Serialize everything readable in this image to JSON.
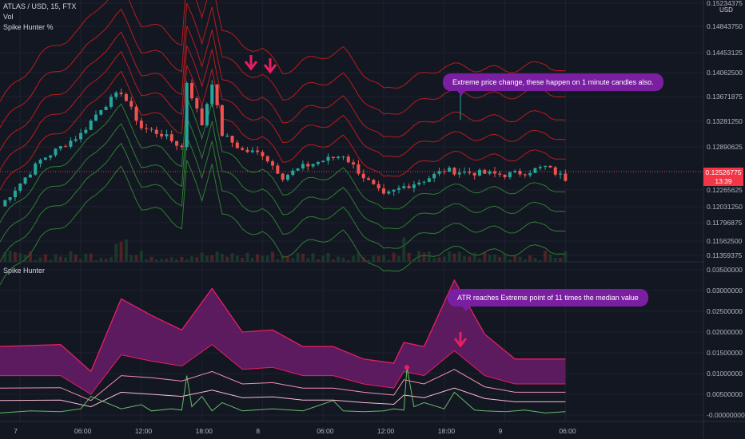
{
  "legend": {
    "symbol_line": "ATLAS / USD, 15, FTX",
    "vol_label": "Vol",
    "main_indicator": "Spike Hunter %",
    "lower_indicator": "Spike Hunter"
  },
  "annotations": {
    "upper": "Extreme price change,  these happen on 1 minute candles also.",
    "lower": "ATR reaches Extreme point of 11 times the median value"
  },
  "price_axis": {
    "currency": "USD",
    "ticks": [
      "0.15234375",
      "0.14843750",
      "0.14453125",
      "0.14062500",
      "0.13671875",
      "0.13281250",
      "0.12890625",
      "0.12265625",
      "0.12031250",
      "0.11796875",
      "0.11562500",
      "0.11359375"
    ],
    "last_price": "0.12526775",
    "countdown": "13:39"
  },
  "indicator_axis": {
    "ticks": [
      "0.03500000",
      "0.03000000",
      "0.02500000",
      "0.02000000",
      "0.01500000",
      "0.01000000",
      "0.00500000",
      "-0.00000000"
    ]
  },
  "time_axis": {
    "ticks": [
      "7",
      "06:00",
      "12:00",
      "18:00",
      "8",
      "06:00",
      "12:00",
      "18:00",
      "9",
      "06:00"
    ]
  },
  "colors": {
    "background": "#131722",
    "candle_up": "#26a69a",
    "candle_down": "#ef5350",
    "band_red": "#b71c1c",
    "band_green": "#2e7d32",
    "atr_fill": "#6a1b6a",
    "atr_line": "#e91e63",
    "spike_green": "#66bb6a",
    "callout": "#7b1fa2",
    "arrow": "#e91e63"
  },
  "chart_data": {
    "type": "line",
    "symbol": "ATLAS / USD",
    "timeframe": "15",
    "exchange": "FTX",
    "price_ylim": [
      0.1125,
      0.1525
    ],
    "price_series": [
      {
        "name": "price",
        "x_hours": [
          0,
          2,
          4,
          6,
          8,
          10,
          12,
          14,
          16,
          18,
          18.5,
          20,
          21,
          22,
          24,
          26,
          28,
          30,
          32,
          34,
          36,
          38,
          40,
          42,
          44,
          46,
          48,
          50,
          52,
          54,
          56
        ],
        "values": [
          0.121,
          0.1245,
          0.128,
          0.13,
          0.132,
          0.136,
          0.1385,
          0.133,
          0.132,
          0.13,
          0.14,
          0.1335,
          0.14,
          0.132,
          0.1295,
          0.129,
          0.1255,
          0.127,
          0.128,
          0.1288,
          0.1255,
          0.1225,
          0.124,
          0.125,
          0.1265,
          0.1262,
          0.126,
          0.1258,
          0.1262,
          0.127,
          0.1252
        ]
      }
    ],
    "indicator_ylim": [
      0.0,
      0.035
    ],
    "indicator_series": [
      {
        "name": "atr_upper",
        "x_hours": [
          0,
          6,
          9,
          12,
          15,
          18,
          21,
          24,
          27,
          30,
          33,
          36,
          39,
          40,
          42,
          45,
          48,
          51,
          54,
          56
        ],
        "values": [
          0.0165,
          0.017,
          0.0105,
          0.028,
          0.024,
          0.0205,
          0.0305,
          0.02,
          0.0205,
          0.0165,
          0.0165,
          0.0135,
          0.0125,
          0.0175,
          0.0165,
          0.0325,
          0.0195,
          0.0135,
          0.0135,
          0.0135
        ]
      },
      {
        "name": "atr_band2",
        "x_hours": [
          0,
          6,
          9,
          12,
          15,
          18,
          21,
          24,
          27,
          30,
          33,
          36,
          39,
          40,
          42,
          45,
          48,
          51,
          54,
          56
        ],
        "values": [
          0.0095,
          0.0095,
          0.005,
          0.0145,
          0.013,
          0.0118,
          0.017,
          0.011,
          0.0115,
          0.0095,
          0.0095,
          0.0075,
          0.0065,
          0.0105,
          0.0095,
          0.0155,
          0.0095,
          0.0075,
          0.0075,
          0.0075
        ]
      },
      {
        "name": "atr_band3",
        "x_hours": [
          0,
          6,
          9,
          12,
          15,
          18,
          21,
          24,
          27,
          30,
          33,
          36,
          39,
          40,
          42,
          45,
          48,
          51,
          54,
          56
        ],
        "values": [
          0.0065,
          0.0066,
          0.0035,
          0.0095,
          0.009,
          0.0082,
          0.0105,
          0.0075,
          0.0078,
          0.0065,
          0.0065,
          0.0055,
          0.0048,
          0.0085,
          0.0075,
          0.011,
          0.0068,
          0.0055,
          0.0055,
          0.0055
        ]
      },
      {
        "name": "atr_band4",
        "x_hours": [
          0,
          6,
          9,
          12,
          15,
          18,
          21,
          24,
          27,
          30,
          33,
          36,
          39,
          40,
          42,
          45,
          48,
          51,
          54,
          56
        ],
        "values": [
          0.0035,
          0.0036,
          0.002,
          0.0055,
          0.005,
          0.0045,
          0.006,
          0.0042,
          0.0044,
          0.0036,
          0.0036,
          0.003,
          0.0026,
          0.0048,
          0.0042,
          0.0065,
          0.004,
          0.0032,
          0.0032,
          0.0032
        ]
      },
      {
        "name": "atr_value",
        "x_hours": [
          0,
          3,
          6,
          8,
          9,
          12,
          14,
          15,
          17,
          18,
          18.5,
          19,
          20,
          21,
          22,
          24,
          27,
          30,
          33,
          34,
          36,
          38,
          39,
          40,
          40.3,
          41,
          42,
          44,
          45,
          47,
          48,
          50,
          52,
          54,
          56
        ],
        "values": [
          0.0005,
          0.001,
          0.0008,
          0.0015,
          0.0045,
          0.0015,
          0.0025,
          0.001,
          0.0015,
          0.0012,
          0.0095,
          0.002,
          0.0045,
          0.001,
          0.003,
          0.001,
          0.0015,
          0.001,
          0.0035,
          0.001,
          0.0008,
          0.001,
          0.0015,
          0.0012,
          0.0115,
          0.002,
          0.003,
          0.0015,
          0.0055,
          0.0012,
          0.001,
          0.0008,
          0.0012,
          0.0005,
          0.0008
        ]
      }
    ],
    "spike_markers": [
      {
        "pane": "indicator",
        "x_hours": 40.3,
        "value": 0.0115
      }
    ]
  }
}
